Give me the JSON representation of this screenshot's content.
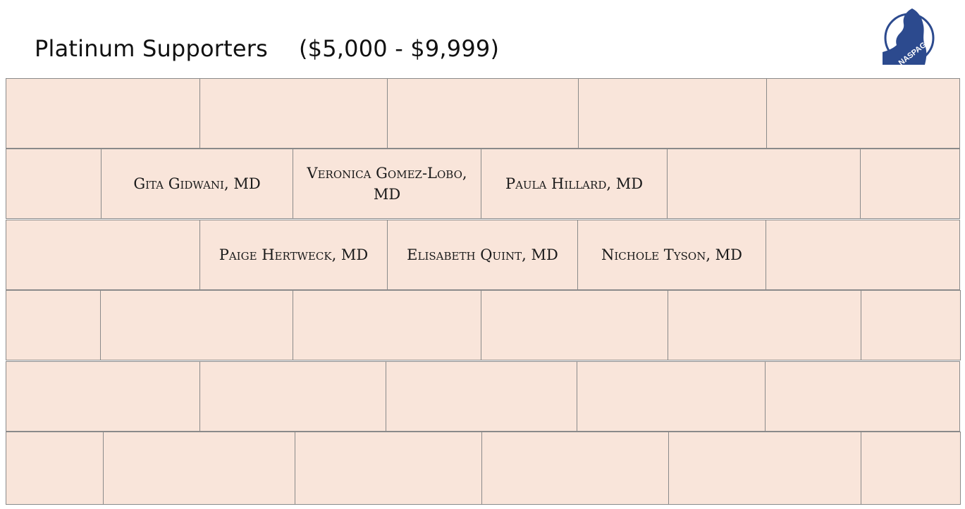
{
  "header": {
    "title": "Platinum Supporters",
    "range": "($5,000 - $9,999)"
  },
  "logo": {
    "text": "NASPAG",
    "color": "#2c4a8e"
  },
  "colors": {
    "brick_fill": "#f9e5da",
    "brick_border": "#8a8a8a"
  },
  "supporters": {
    "gidwani": "Gita Gidwani, MD",
    "gomez_lobo": "Veronica Gomez-Lobo, MD",
    "hillard": "Paula Hillard, MD",
    "hertweck": "Paige Hertweck, MD",
    "quint": "Elisabeth Quint, MD",
    "tyson": "Nichole Tyson, MD"
  }
}
